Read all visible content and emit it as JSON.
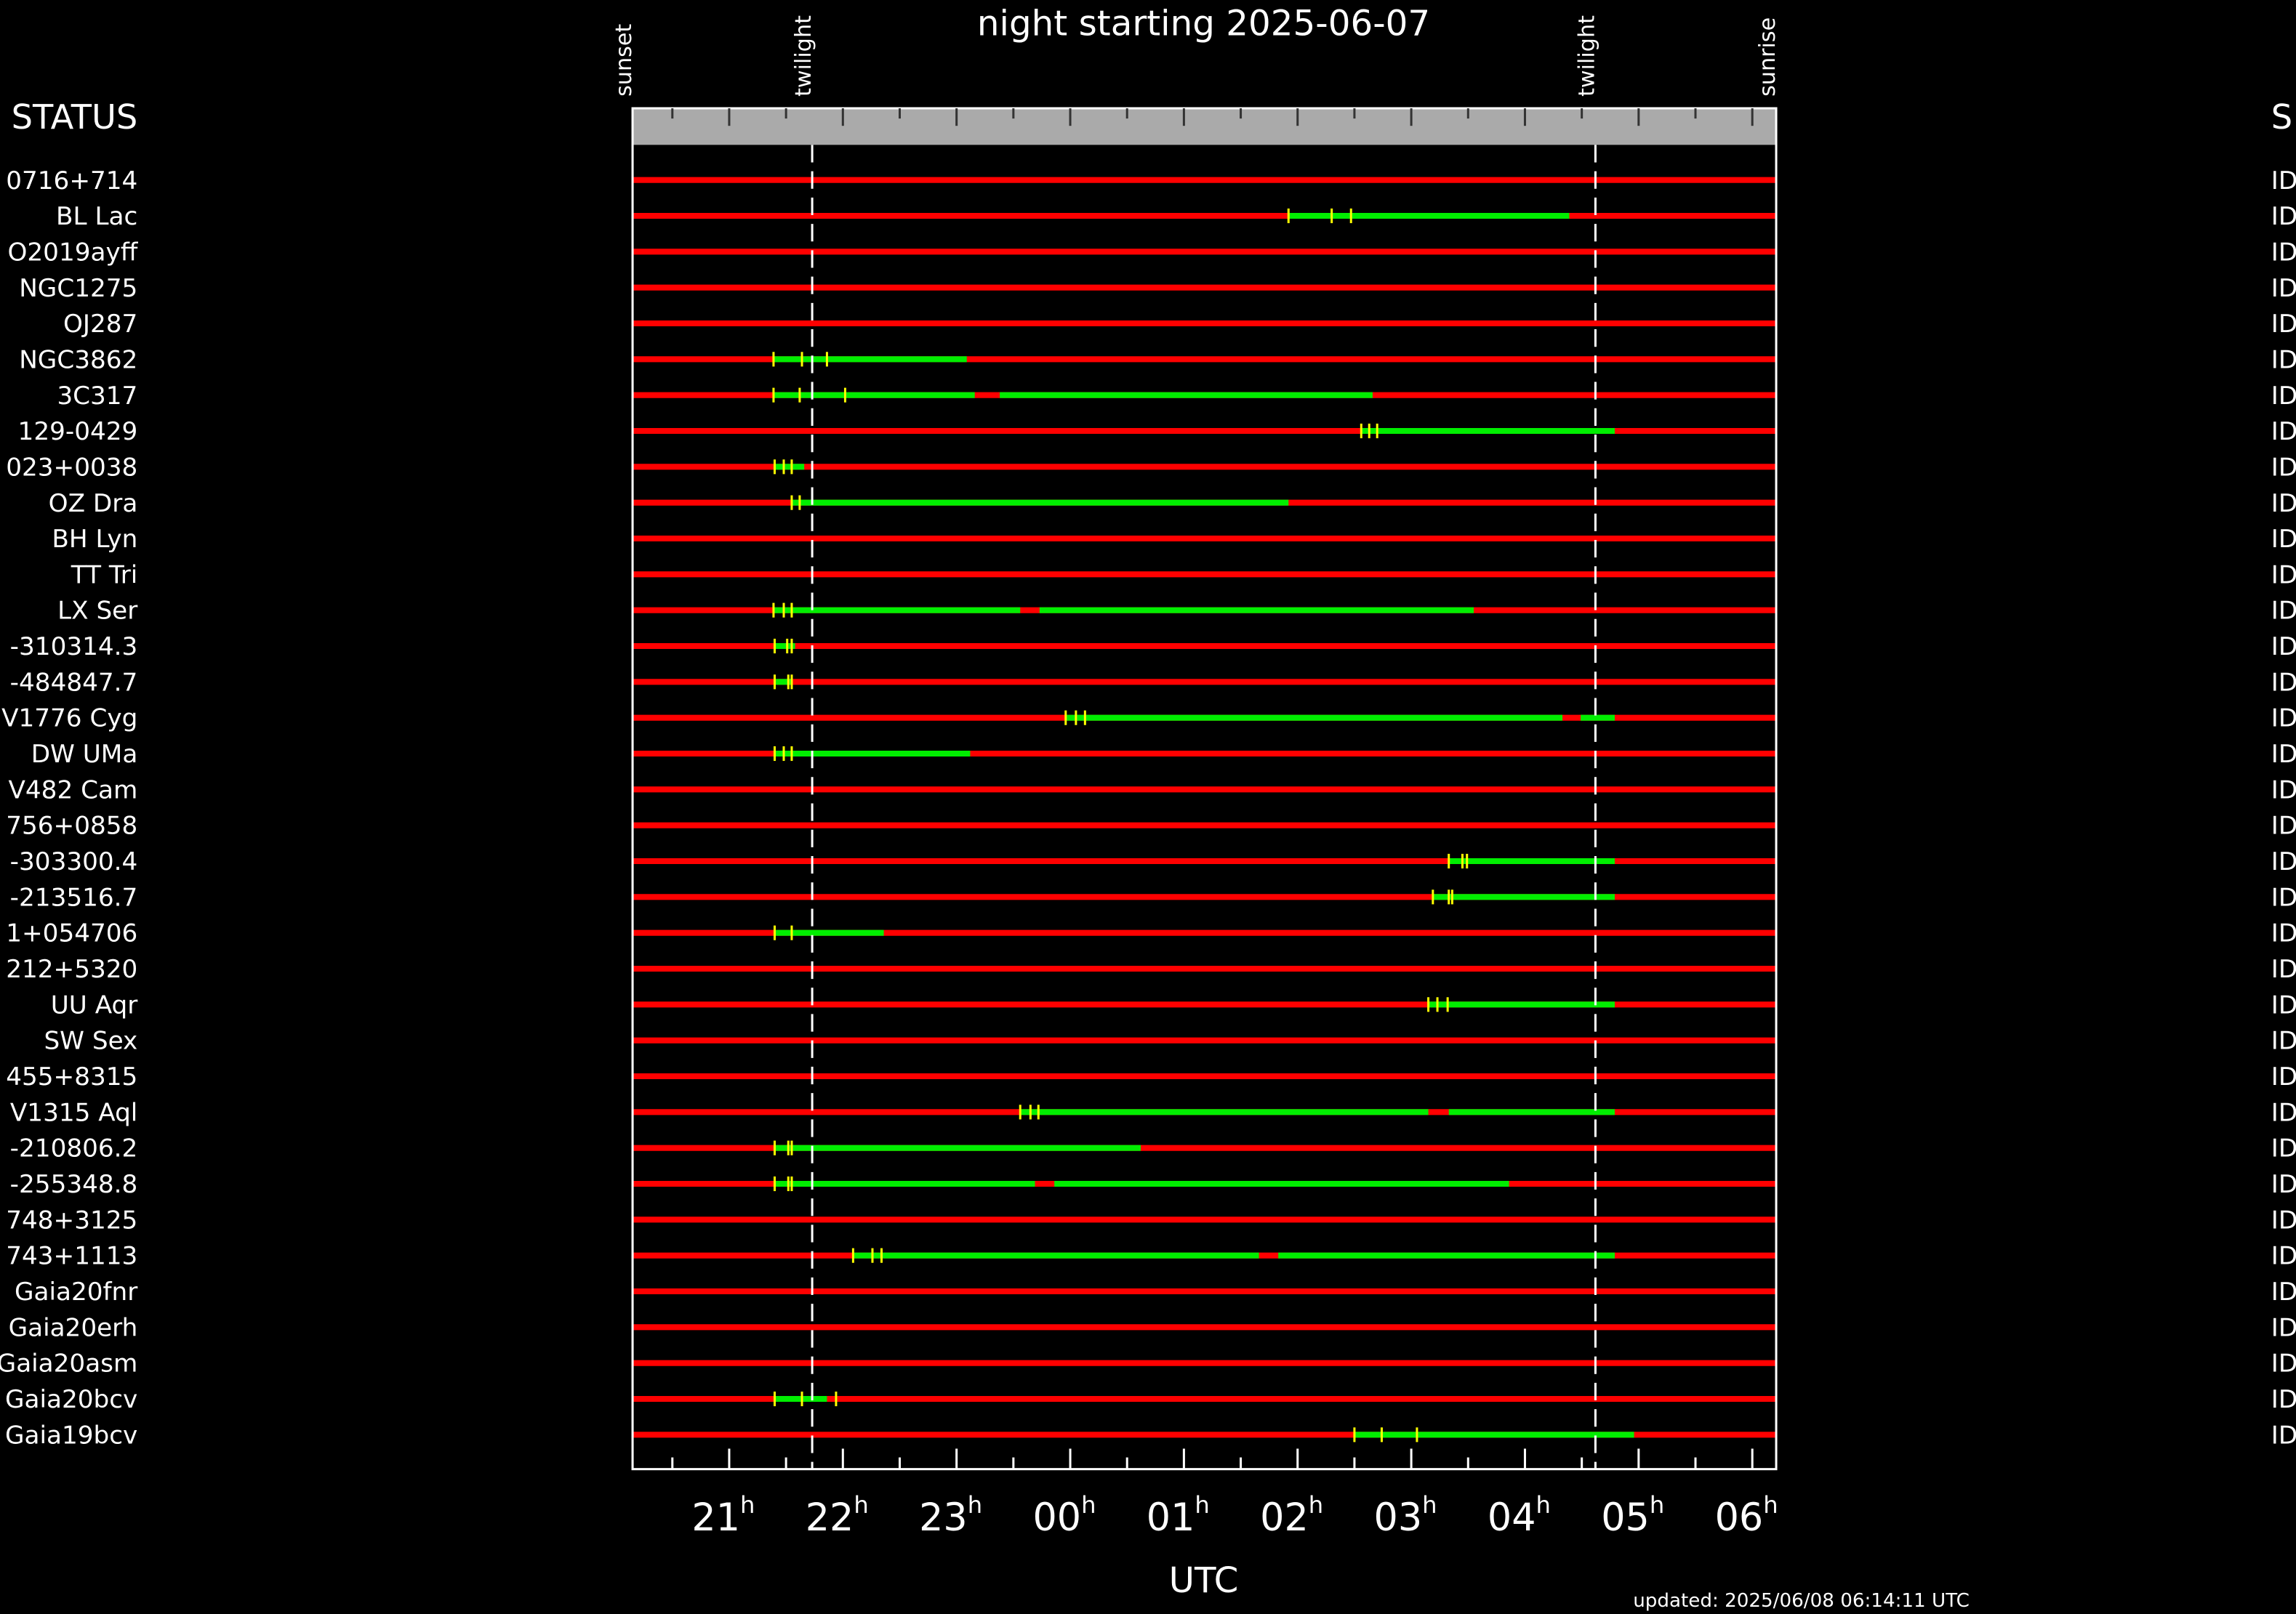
{
  "chart_data": {
    "type": "timeline",
    "title": "night starting 2025-06-07",
    "xlabel": "UTC",
    "status_header": "STATUS",
    "status_header_right": "S",
    "footer": "updated: 2025/06/08 06:14:11 UTC",
    "xlim": [
      20.15,
      30.21
    ],
    "xticks": [
      {
        "value": 21,
        "label": "21",
        "sup": "h"
      },
      {
        "value": 22,
        "label": "22",
        "sup": "h"
      },
      {
        "value": 23,
        "label": "23",
        "sup": "h"
      },
      {
        "value": 24,
        "label": "00",
        "sup": "h"
      },
      {
        "value": 25,
        "label": "01",
        "sup": "h"
      },
      {
        "value": 26,
        "label": "02",
        "sup": "h"
      },
      {
        "value": 27,
        "label": "03",
        "sup": "h"
      },
      {
        "value": 28,
        "label": "04",
        "sup": "h"
      },
      {
        "value": 29,
        "label": "05",
        "sup": "h"
      },
      {
        "value": 30,
        "label": "06",
        "sup": "h"
      }
    ],
    "xticks_minor": [
      20.5,
      21.5,
      22.5,
      23.5,
      24.5,
      25.5,
      26.5,
      27.5,
      28.5,
      29.5
    ],
    "events": [
      {
        "label": "sunset",
        "value": 20.15
      },
      {
        "label": "twilight",
        "value": 21.73,
        "line": true
      },
      {
        "label": "twilight",
        "value": 28.62,
        "line": true
      },
      {
        "label": "sunrise",
        "value": 30.21
      }
    ],
    "colors": {
      "unavailable": "#ff0000",
      "visible": "#00ee00",
      "marker": "#ffff00"
    },
    "rows": [
      {
        "name": "0716+714",
        "status": "ID",
        "intervals": [],
        "markers": []
      },
      {
        "name": "BL Lac",
        "status": "ID",
        "intervals": [
          [
            25.92,
            28.39
          ]
        ],
        "markers": [
          25.92,
          26.3,
          26.47
        ]
      },
      {
        "name": "O2019ayff",
        "status": "ID",
        "intervals": [],
        "markers": []
      },
      {
        "name": "NGC1275",
        "status": "ID",
        "intervals": [],
        "markers": []
      },
      {
        "name": "OJ287",
        "status": "ID",
        "intervals": [],
        "markers": []
      },
      {
        "name": "NGC3862",
        "status": "ID",
        "intervals": [
          [
            21.39,
            23.09
          ]
        ],
        "markers": [
          21.39,
          21.64,
          21.86
        ]
      },
      {
        "name": "3C317",
        "status": "ID",
        "intervals": [
          [
            21.39,
            23.16
          ],
          [
            23.38,
            26.66
          ]
        ],
        "markers": [
          21.39,
          21.62,
          22.02
        ]
      },
      {
        "name": "129-0429",
        "status": "ID",
        "intervals": [
          [
            26.56,
            28.79
          ]
        ],
        "markers": [
          26.56,
          26.63,
          26.7
        ]
      },
      {
        "name": "023+0038",
        "status": "ID",
        "intervals": [
          [
            21.39,
            21.66
          ]
        ],
        "markers": [
          21.4,
          21.48,
          21.55
        ]
      },
      {
        "name": "OZ Dra",
        "status": "ID",
        "intervals": [
          [
            21.55,
            25.92
          ]
        ],
        "markers": [
          21.55,
          21.62
        ]
      },
      {
        "name": "BH Lyn",
        "status": "ID",
        "intervals": [],
        "markers": []
      },
      {
        "name": "TT Tri",
        "status": "ID",
        "intervals": [],
        "markers": []
      },
      {
        "name": "LX Ser",
        "status": "ID",
        "intervals": [
          [
            21.39,
            23.56
          ],
          [
            23.73,
            27.55
          ]
        ],
        "markers": [
          21.39,
          21.48,
          21.55
        ]
      },
      {
        "name": "-310314.3",
        "status": "ID",
        "intervals": [
          [
            21.39,
            21.58
          ]
        ],
        "markers": [
          21.4,
          21.51,
          21.55
        ]
      },
      {
        "name": "-484847.7",
        "status": "ID",
        "intervals": [
          [
            21.39,
            21.55
          ]
        ],
        "markers": [
          21.4,
          21.52,
          21.55
        ]
      },
      {
        "name": "V1776 Cyg",
        "status": "ID",
        "intervals": [
          [
            23.96,
            28.33
          ],
          [
            28.49,
            28.79
          ]
        ],
        "markers": [
          23.96,
          24.05,
          24.13
        ]
      },
      {
        "name": "DW UMa",
        "status": "ID",
        "intervals": [
          [
            21.39,
            23.12
          ]
        ],
        "markers": [
          21.4,
          21.48,
          21.55
        ]
      },
      {
        "name": "V482 Cam",
        "status": "ID",
        "intervals": [],
        "markers": []
      },
      {
        "name": "756+0858",
        "status": "ID",
        "intervals": [],
        "markers": []
      },
      {
        "name": "-303300.4",
        "status": "ID",
        "intervals": [
          [
            27.33,
            28.79
          ]
        ],
        "markers": [
          27.33,
          27.45,
          27.49
        ]
      },
      {
        "name": "-213516.7",
        "status": "ID",
        "intervals": [
          [
            27.19,
            28.79
          ]
        ],
        "markers": [
          27.19,
          27.33,
          27.36
        ]
      },
      {
        "name": "1+054706",
        "status": "ID",
        "intervals": [
          [
            21.39,
            22.36
          ]
        ],
        "markers": [
          21.4,
          21.55
        ]
      },
      {
        "name": "212+5320",
        "status": "ID",
        "intervals": [],
        "markers": []
      },
      {
        "name": "UU Aqr",
        "status": "ID",
        "intervals": [
          [
            27.15,
            28.79
          ]
        ],
        "markers": [
          27.15,
          27.23,
          27.32
        ]
      },
      {
        "name": "SW Sex",
        "status": "ID",
        "intervals": [],
        "markers": []
      },
      {
        "name": "455+8315",
        "status": "ID",
        "intervals": [],
        "markers": []
      },
      {
        "name": "V1315 Aql",
        "status": "ID",
        "intervals": [
          [
            23.56,
            27.15
          ],
          [
            27.33,
            28.79
          ]
        ],
        "markers": [
          23.56,
          23.65,
          23.72
        ]
      },
      {
        "name": "-210806.2",
        "status": "ID",
        "intervals": [
          [
            21.39,
            24.62
          ]
        ],
        "markers": [
          21.4,
          21.52,
          21.55
        ]
      },
      {
        "name": "-255348.8",
        "status": "ID",
        "intervals": [
          [
            21.39,
            23.69
          ],
          [
            23.86,
            27.86
          ]
        ],
        "markers": [
          21.4,
          21.52,
          21.55
        ]
      },
      {
        "name": "748+3125",
        "status": "ID",
        "intervals": [],
        "markers": []
      },
      {
        "name": "743+1113",
        "status": "ID",
        "intervals": [
          [
            22.09,
            25.66
          ],
          [
            25.83,
            28.79
          ]
        ],
        "markers": [
          22.09,
          22.26,
          22.34
        ]
      },
      {
        "name": "Gaia20fnr",
        "status": "ID",
        "intervals": [],
        "markers": []
      },
      {
        "name": "Gaia20erh",
        "status": "ID",
        "intervals": [],
        "markers": []
      },
      {
        "name": "Gaia20asm",
        "status": "ID",
        "intervals": [],
        "markers": []
      },
      {
        "name": "Gaia20bcv",
        "status": "ID",
        "intervals": [
          [
            21.39,
            21.86
          ]
        ],
        "markers": [
          21.4,
          21.64,
          21.94
        ]
      },
      {
        "name": "Gaia19bcv",
        "status": "ID",
        "intervals": [
          [
            26.5,
            28.96
          ]
        ],
        "markers": [
          26.5,
          26.74,
          27.05
        ]
      }
    ]
  }
}
